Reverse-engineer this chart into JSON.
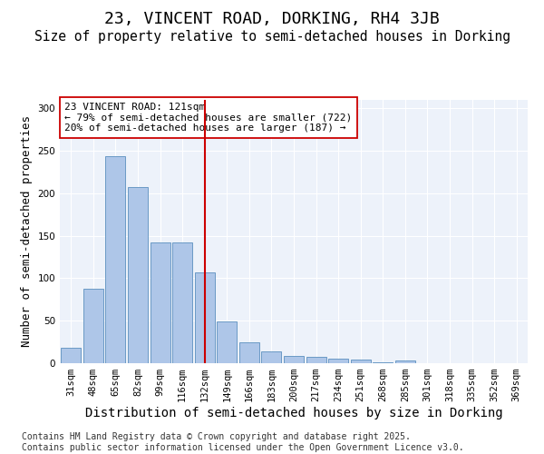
{
  "title": "23, VINCENT ROAD, DORKING, RH4 3JB",
  "subtitle": "Size of property relative to semi-detached houses in Dorking",
  "xlabel": "Distribution of semi-detached houses by size in Dorking",
  "ylabel": "Number of semi-detached properties",
  "annotation_line1": "23 VINCENT ROAD: 121sqm",
  "annotation_line2": "← 79% of semi-detached houses are smaller (722)",
  "annotation_line3": "20% of semi-detached houses are larger (187) →",
  "footer_line1": "Contains HM Land Registry data © Crown copyright and database right 2025.",
  "footer_line2": "Contains public sector information licensed under the Open Government Licence v3.0.",
  "categories": [
    "31sqm",
    "48sqm",
    "65sqm",
    "82sqm",
    "99sqm",
    "116sqm",
    "132sqm",
    "149sqm",
    "166sqm",
    "183sqm",
    "200sqm",
    "217sqm",
    "234sqm",
    "251sqm",
    "268sqm",
    "285sqm",
    "301sqm",
    "318sqm",
    "335sqm",
    "352sqm",
    "369sqm"
  ],
  "bar_heights": [
    18,
    88,
    244,
    207,
    142,
    142,
    107,
    49,
    25,
    14,
    9,
    8,
    5,
    4,
    1,
    3,
    0,
    0,
    0,
    0,
    0
  ],
  "bar_color": "#aec6e8",
  "bar_edge_color": "#5b8fbe",
  "vline_x": 6.0,
  "vline_color": "#cc0000",
  "ylim": [
    0,
    310
  ],
  "yticks": [
    0,
    50,
    100,
    150,
    200,
    250,
    300
  ],
  "background_color": "#edf2fa",
  "grid_color": "#ffffff",
  "title_fontsize": 13,
  "subtitle_fontsize": 10.5,
  "axis_label_fontsize": 9,
  "tick_fontsize": 7.5,
  "annotation_fontsize": 8,
  "footer_fontsize": 7
}
